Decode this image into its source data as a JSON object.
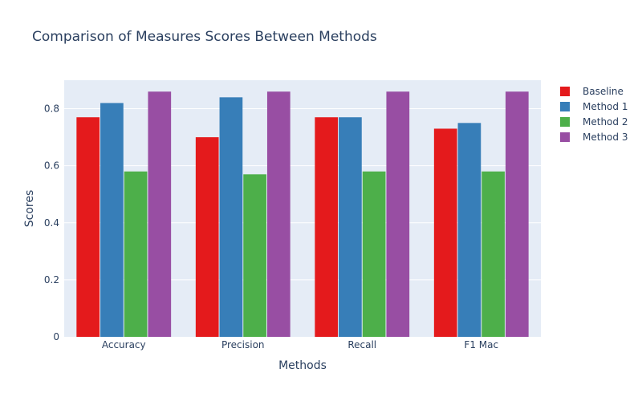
{
  "chart_data": {
    "type": "bar",
    "title": "Comparison of Measures Scores Between Methods",
    "xlabel": "Methods",
    "ylabel": "Scores",
    "categories": [
      "Accuracy",
      "Precision",
      "Recall",
      "F1 Mac"
    ],
    "ylim": [
      0,
      0.9
    ],
    "yticks": [
      0,
      0.2,
      0.4,
      0.6,
      0.8
    ],
    "ytick_labels": [
      "0",
      "0.2",
      "0.4",
      "0.6",
      "0.8"
    ],
    "grid": true,
    "legend_position": "top-right",
    "series": [
      {
        "name": "Baseline",
        "color": "#e41a1c",
        "values": [
          0.77,
          0.7,
          0.77,
          0.73
        ]
      },
      {
        "name": "Method 1",
        "color": "#377eb8",
        "values": [
          0.82,
          0.84,
          0.77,
          0.75
        ]
      },
      {
        "name": "Method 2",
        "color": "#4daf4a",
        "values": [
          0.58,
          0.57,
          0.58,
          0.58
        ]
      },
      {
        "name": "Method 3",
        "color": "#984ea3",
        "values": [
          0.86,
          0.86,
          0.86,
          0.86
        ]
      }
    ],
    "plot_background": "#e5ecf6",
    "grid_color": "#ffffff"
  }
}
